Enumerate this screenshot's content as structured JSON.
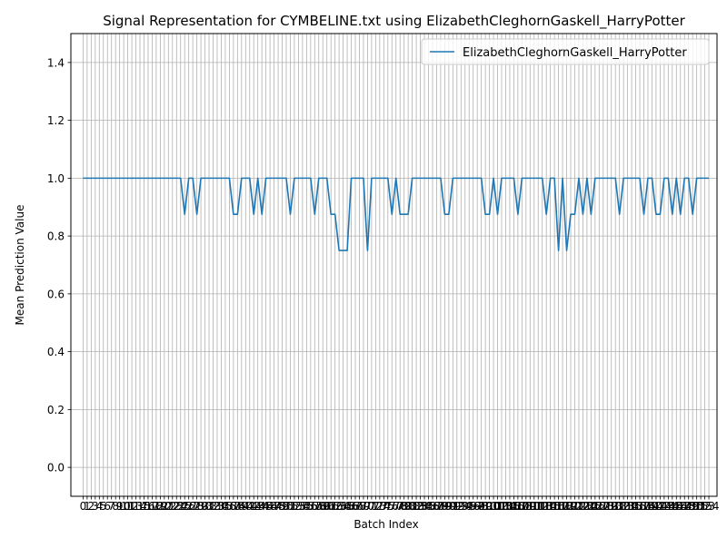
{
  "chart_data": {
    "type": "line",
    "title": "Signal Representation for CYMBELINE.txt using ElizabethCleghornGaskell_HarryPotter",
    "xlabel": "Batch Index",
    "ylabel": "Mean Prediction Value",
    "xlim": [
      -3.0,
      156.0
    ],
    "ylim": [
      -0.1,
      1.5
    ],
    "yticks": [
      0.0,
      0.2,
      0.4,
      0.6,
      0.8,
      1.0,
      1.2,
      1.4
    ],
    "grid": true,
    "legend": "top-right",
    "line_color": "#1f77b4",
    "series": [
      {
        "name": "ElizabethCleghornGaskell_HarryPotter",
        "values": [
          1,
          1,
          1,
          1,
          1,
          1,
          1,
          1,
          1,
          1,
          1,
          1,
          1,
          1,
          1,
          1,
          1,
          1,
          1,
          1,
          1,
          1,
          1,
          1,
          1,
          0.875,
          1,
          1,
          0.875,
          1,
          1,
          1,
          1,
          1,
          1,
          1,
          1,
          0.875,
          0.875,
          1,
          1,
          1,
          0.875,
          1,
          0.875,
          1,
          1,
          1,
          1,
          1,
          1,
          0.875,
          1,
          1,
          1,
          1,
          1,
          0.875,
          1,
          1,
          1,
          0.875,
          0.875,
          0.75,
          0.75,
          0.75,
          1,
          1,
          1,
          1,
          0.75,
          1,
          1,
          1,
          1,
          1,
          0.875,
          1,
          0.875,
          0.875,
          0.875,
          1,
          1,
          1,
          1,
          1,
          1,
          1,
          1,
          0.875,
          0.875,
          1,
          1,
          1,
          1,
          1,
          1,
          1,
          1,
          0.875,
          0.875,
          1,
          0.875,
          1,
          1,
          1,
          1,
          0.875,
          1,
          1,
          1,
          1,
          1,
          1,
          0.875,
          1,
          1,
          0.75,
          1,
          0.75,
          0.875,
          0.875,
          1,
          0.875,
          1,
          0.875,
          1,
          1,
          1,
          1,
          1,
          1,
          0.875,
          1,
          1,
          1,
          1,
          1,
          0.875,
          1,
          1,
          0.875,
          0.875,
          1,
          1,
          0.875,
          1,
          0.875,
          1,
          1,
          0.875,
          1,
          1,
          1,
          1
        ]
      }
    ]
  }
}
